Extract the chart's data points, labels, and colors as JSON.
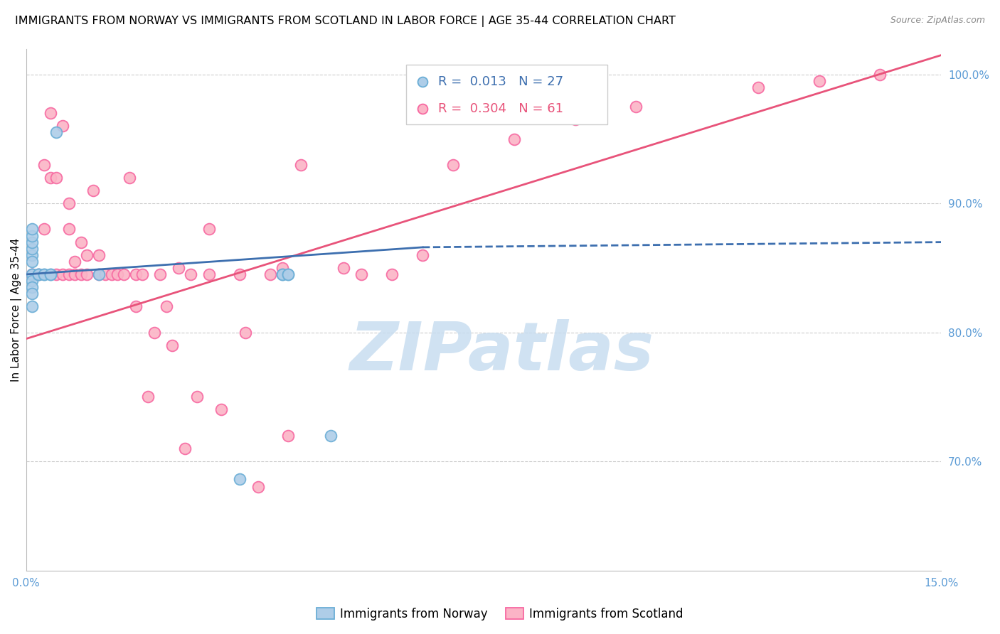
{
  "title": "IMMIGRANTS FROM NORWAY VS IMMIGRANTS FROM SCOTLAND IN LABOR FORCE | AGE 35-44 CORRELATION CHART",
  "source": "Source: ZipAtlas.com",
  "ylabel": "In Labor Force | Age 35-44",
  "xlim": [
    0.0,
    0.15
  ],
  "ylim": [
    0.615,
    1.02
  ],
  "ytick_right_labels": [
    "100.0%",
    "90.0%",
    "80.0%",
    "70.0%"
  ],
  "ytick_right_vals": [
    1.0,
    0.9,
    0.8,
    0.7
  ],
  "norway_color": "#6baed6",
  "norway_color_fill": "#aecde8",
  "scotland_color": "#f768a1",
  "scotland_color_fill": "#fbb4c6",
  "norway_line_color": "#3d6faf",
  "scotland_line_color": "#e8537a",
  "watermark_text": "ZIPatlas",
  "watermark_color": "#c8ddf0",
  "background_color": "#ffffff",
  "grid_color": "#cccccc",
  "tick_color": "#5b9bd5",
  "norway_scatter_x": [
    0.001,
    0.001,
    0.001,
    0.001,
    0.001,
    0.001,
    0.002,
    0.002,
    0.002,
    0.003,
    0.003,
    0.004,
    0.004,
    0.005,
    0.001,
    0.001,
    0.001,
    0.001,
    0.001,
    0.001,
    0.012,
    0.042,
    0.042,
    0.043,
    0.043,
    0.05,
    0.035
  ],
  "norway_scatter_y": [
    0.845,
    0.845,
    0.84,
    0.835,
    0.83,
    0.82,
    0.845,
    0.845,
    0.845,
    0.845,
    0.845,
    0.845,
    0.845,
    0.955,
    0.86,
    0.865,
    0.87,
    0.855,
    0.875,
    0.88,
    0.845,
    0.845,
    0.845,
    0.845,
    0.845,
    0.72,
    0.686
  ],
  "scotland_scatter_x": [
    0.001,
    0.001,
    0.002,
    0.003,
    0.003,
    0.004,
    0.004,
    0.005,
    0.005,
    0.006,
    0.006,
    0.007,
    0.007,
    0.007,
    0.008,
    0.008,
    0.009,
    0.009,
    0.01,
    0.01,
    0.011,
    0.012,
    0.012,
    0.013,
    0.014,
    0.015,
    0.016,
    0.017,
    0.018,
    0.018,
    0.019,
    0.02,
    0.021,
    0.022,
    0.023,
    0.024,
    0.025,
    0.026,
    0.027,
    0.028,
    0.03,
    0.03,
    0.032,
    0.035,
    0.036,
    0.038,
    0.04,
    0.042,
    0.043,
    0.045,
    0.052,
    0.055,
    0.06,
    0.065,
    0.07,
    0.08,
    0.09,
    0.1,
    0.12,
    0.13,
    0.14
  ],
  "scotland_scatter_y": [
    0.845,
    0.845,
    0.845,
    0.93,
    0.88,
    0.97,
    0.92,
    0.845,
    0.92,
    0.845,
    0.96,
    0.845,
    0.88,
    0.9,
    0.845,
    0.855,
    0.845,
    0.87,
    0.845,
    0.86,
    0.91,
    0.845,
    0.86,
    0.845,
    0.845,
    0.845,
    0.845,
    0.92,
    0.845,
    0.82,
    0.845,
    0.75,
    0.8,
    0.845,
    0.82,
    0.79,
    0.85,
    0.71,
    0.845,
    0.75,
    0.88,
    0.845,
    0.74,
    0.845,
    0.8,
    0.68,
    0.845,
    0.85,
    0.72,
    0.93,
    0.85,
    0.845,
    0.845,
    0.86,
    0.93,
    0.95,
    0.965,
    0.975,
    0.99,
    0.995,
    1.0
  ],
  "norway_line_x0": 0.0,
  "norway_line_y0": 0.845,
  "norway_line_x1_solid": 0.065,
  "norway_line_y1_solid": 0.866,
  "norway_line_x1_dash": 0.15,
  "norway_line_y1_dash": 0.87,
  "scotland_line_x0": 0.0,
  "scotland_line_y0": 0.795,
  "scotland_line_x1": 0.15,
  "scotland_line_y1": 1.015,
  "title_fontsize": 11.5,
  "source_fontsize": 9,
  "axis_label_fontsize": 11,
  "tick_fontsize": 11,
  "legend_fontsize": 13
}
